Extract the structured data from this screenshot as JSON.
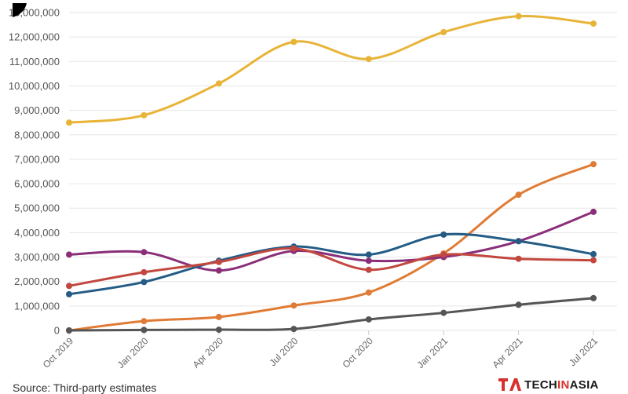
{
  "chart_data": {
    "type": "line",
    "x": [
      "Oct 2019",
      "Jan 2020",
      "Apr 2020",
      "Jul 2020",
      "Oct 2020",
      "Jan 2021",
      "Apr 2021",
      "Jul 2021"
    ],
    "x_tick_labels": [
      "Oct 2019",
      "Jan 2020",
      "Apr 2020",
      "Jul 2020",
      "Oct 2020",
      "Jan 2021",
      "Apr 2021",
      "Jul 2021"
    ],
    "y_tick_values": [
      0,
      1000000,
      2000000,
      3000000,
      4000000,
      5000000,
      6000000,
      7000000,
      8000000,
      9000000,
      10000000,
      11000000,
      12000000,
      13000000
    ],
    "y_tick_labels": [
      "0",
      "1,000,000",
      "2,000,000",
      "3,000,000",
      "4,000,000",
      "5,000,000",
      "6,000,000",
      "7,000,000",
      "8,000,000",
      "9,000,000",
      "10,000,000",
      "11,000,000",
      "12,000,000",
      "13,000,000"
    ],
    "ylim": [
      0,
      13000000
    ],
    "grid": true,
    "series": [
      {
        "color": "#e8b438",
        "values": [
          8500000,
          8800000,
          10100000,
          11800000,
          11100000,
          12200000,
          12850000,
          12550000
        ]
      },
      {
        "color": "#e07b35",
        "values": [
          0,
          380000,
          550000,
          1020000,
          1550000,
          3150000,
          5550000,
          6800000
        ]
      },
      {
        "color": "#8a2e79",
        "values": [
          3100000,
          3200000,
          2450000,
          3250000,
          2850000,
          3000000,
          3650000,
          4850000
        ]
      },
      {
        "color": "#245c86",
        "values": [
          1480000,
          1980000,
          2850000,
          3430000,
          3100000,
          3920000,
          3650000,
          3120000
        ]
      },
      {
        "color": "#c2483f",
        "values": [
          1820000,
          2380000,
          2800000,
          3350000,
          2480000,
          3100000,
          2930000,
          2870000
        ]
      },
      {
        "color": "#555555",
        "values": [
          0,
          20000,
          30000,
          60000,
          450000,
          720000,
          1050000,
          1320000
        ]
      }
    ]
  },
  "footer": {
    "source": "Source: Third-party estimates",
    "logo_prefix": "TECH",
    "logo_mid": "IN",
    "logo_suffix": "ASIA",
    "logo_icon": "techinasia-logo-icon"
  }
}
